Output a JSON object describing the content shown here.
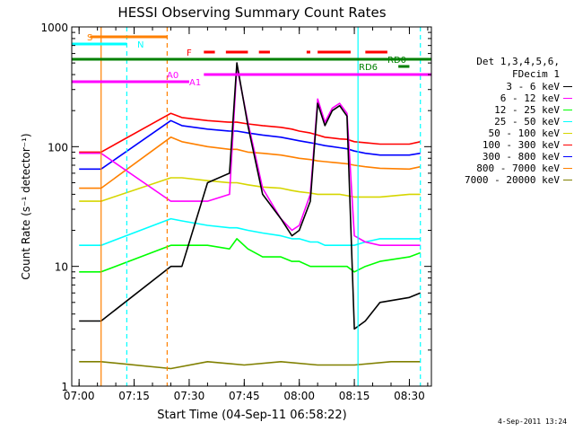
{
  "chart_data": {
    "type": "line",
    "title": "HESSI Observing Summary Count Rates",
    "xlabel": "Start Time (04-Sep-11 06:58:22)",
    "ylabel": "Count Rate (s⁻¹ detector⁻¹)",
    "ylog": true,
    "xlim": [
      "06:58",
      "08:36"
    ],
    "ylim": [
      1,
      1000
    ],
    "x_ticks": [
      "07:00",
      "07:15",
      "07:30",
      "07:45",
      "08:00",
      "08:15",
      "08:30"
    ],
    "y_ticks": [
      "1",
      "10",
      "100",
      "1000"
    ],
    "legend_placement": "right",
    "legend_header": [
      "Det 1,3,4,5,6,",
      "FDecim 1"
    ],
    "series": [
      {
        "name": "3 - 6 keV",
        "color": "#000000",
        "points": [
          [
            "07:00",
            3.5
          ],
          [
            "07:06",
            3.5
          ],
          [
            "07:25",
            10
          ],
          [
            "07:28",
            10
          ],
          [
            "07:35",
            50
          ],
          [
            "07:41",
            60
          ],
          [
            "07:43",
            500
          ],
          [
            "07:46",
            150
          ],
          [
            "07:50",
            40
          ],
          [
            "07:55",
            25
          ],
          [
            "07:58",
            18
          ],
          [
            "08:00",
            20
          ],
          [
            "08:03",
            35
          ],
          [
            "08:05",
            230
          ],
          [
            "08:07",
            150
          ],
          [
            "08:09",
            200
          ],
          [
            "08:11",
            220
          ],
          [
            "08:13",
            180
          ],
          [
            "08:15",
            3
          ],
          [
            "08:18",
            3.5
          ],
          [
            "08:22",
            5
          ],
          [
            "08:30",
            5.5
          ],
          [
            "08:33",
            6
          ]
        ]
      },
      {
        "name": "6 - 12 keV",
        "color": "#ff00ff",
        "points": [
          [
            "07:00",
            88
          ],
          [
            "07:06",
            88
          ],
          [
            "07:25",
            35
          ],
          [
            "07:28",
            35
          ],
          [
            "07:35",
            35
          ],
          [
            "07:41",
            40
          ],
          [
            "07:43",
            470
          ],
          [
            "07:46",
            160
          ],
          [
            "07:50",
            45
          ],
          [
            "07:55",
            25
          ],
          [
            "07:58",
            20
          ],
          [
            "08:00",
            22
          ],
          [
            "08:03",
            40
          ],
          [
            "08:05",
            250
          ],
          [
            "08:07",
            160
          ],
          [
            "08:09",
            210
          ],
          [
            "08:11",
            230
          ],
          [
            "08:13",
            190
          ],
          [
            "08:15",
            18
          ],
          [
            "08:18",
            16
          ],
          [
            "08:22",
            15
          ],
          [
            "08:30",
            15
          ],
          [
            "08:33",
            15
          ]
        ]
      },
      {
        "name": "12 - 25 keV",
        "color": "#00ff00",
        "points": [
          [
            "07:00",
            9
          ],
          [
            "07:06",
            9
          ],
          [
            "07:25",
            15
          ],
          [
            "07:28",
            15
          ],
          [
            "07:35",
            15
          ],
          [
            "07:41",
            14
          ],
          [
            "07:43",
            17
          ],
          [
            "07:46",
            14
          ],
          [
            "07:50",
            12
          ],
          [
            "07:55",
            12
          ],
          [
            "07:58",
            11
          ],
          [
            "08:00",
            11
          ],
          [
            "08:03",
            10
          ],
          [
            "08:05",
            10
          ],
          [
            "08:07",
            10
          ],
          [
            "08:09",
            10
          ],
          [
            "08:11",
            10
          ],
          [
            "08:13",
            10
          ],
          [
            "08:15",
            9
          ],
          [
            "08:18",
            10
          ],
          [
            "08:22",
            11
          ],
          [
            "08:30",
            12
          ],
          [
            "08:33",
            13
          ]
        ]
      },
      {
        "name": "25 - 50 keV",
        "color": "#00ffff",
        "points": [
          [
            "07:00",
            15
          ],
          [
            "07:06",
            15
          ],
          [
            "07:25",
            25
          ],
          [
            "07:28",
            24
          ],
          [
            "07:35",
            22
          ],
          [
            "07:41",
            21
          ],
          [
            "07:43",
            21
          ],
          [
            "07:46",
            20
          ],
          [
            "07:50",
            19
          ],
          [
            "07:55",
            18
          ],
          [
            "07:58",
            17
          ],
          [
            "08:00",
            17
          ],
          [
            "08:03",
            16
          ],
          [
            "08:05",
            16
          ],
          [
            "08:07",
            15
          ],
          [
            "08:09",
            15
          ],
          [
            "08:11",
            15
          ],
          [
            "08:13",
            15
          ],
          [
            "08:15",
            15
          ],
          [
            "08:18",
            16
          ],
          [
            "08:22",
            17
          ],
          [
            "08:30",
            17
          ],
          [
            "08:33",
            17
          ]
        ]
      },
      {
        "name": "50 - 100 keV",
        "color": "#d6d600",
        "points": [
          [
            "07:00",
            35
          ],
          [
            "07:06",
            35
          ],
          [
            "07:25",
            55
          ],
          [
            "07:28",
            55
          ],
          [
            "07:35",
            52
          ],
          [
            "07:41",
            50
          ],
          [
            "07:43",
            50
          ],
          [
            "07:46",
            48
          ],
          [
            "07:50",
            46
          ],
          [
            "07:55",
            45
          ],
          [
            "07:58",
            43
          ],
          [
            "08:00",
            42
          ],
          [
            "08:03",
            41
          ],
          [
            "08:05",
            40
          ],
          [
            "08:07",
            40
          ],
          [
            "08:09",
            40
          ],
          [
            "08:11",
            40
          ],
          [
            "08:13",
            39
          ],
          [
            "08:15",
            38
          ],
          [
            "08:18",
            38
          ],
          [
            "08:22",
            38
          ],
          [
            "08:30",
            40
          ],
          [
            "08:33",
            40
          ]
        ]
      },
      {
        "name": "100 - 300 keV",
        "color": "#ff0000",
        "points": [
          [
            "07:00",
            90
          ],
          [
            "07:06",
            90
          ],
          [
            "07:25",
            190
          ],
          [
            "07:28",
            175
          ],
          [
            "07:35",
            165
          ],
          [
            "07:41",
            160
          ],
          [
            "07:43",
            160
          ],
          [
            "07:46",
            155
          ],
          [
            "07:50",
            150
          ],
          [
            "07:55",
            145
          ],
          [
            "07:58",
            140
          ],
          [
            "08:00",
            135
          ],
          [
            "08:03",
            130
          ],
          [
            "08:05",
            125
          ],
          [
            "08:07",
            120
          ],
          [
            "08:09",
            118
          ],
          [
            "08:11",
            116
          ],
          [
            "08:13",
            115
          ],
          [
            "08:15",
            110
          ],
          [
            "08:18",
            108
          ],
          [
            "08:22",
            105
          ],
          [
            "08:30",
            105
          ],
          [
            "08:33",
            110
          ]
        ]
      },
      {
        "name": "300 - 800 keV",
        "color": "#0000ff",
        "points": [
          [
            "07:00",
            65
          ],
          [
            "07:06",
            65
          ],
          [
            "07:25",
            165
          ],
          [
            "07:28",
            150
          ],
          [
            "07:35",
            140
          ],
          [
            "07:41",
            135
          ],
          [
            "07:43",
            135
          ],
          [
            "07:46",
            130
          ],
          [
            "07:50",
            125
          ],
          [
            "07:55",
            120
          ],
          [
            "07:58",
            115
          ],
          [
            "08:00",
            112
          ],
          [
            "08:03",
            108
          ],
          [
            "08:05",
            105
          ],
          [
            "08:07",
            102
          ],
          [
            "08:09",
            100
          ],
          [
            "08:11",
            98
          ],
          [
            "08:13",
            96
          ],
          [
            "08:15",
            92
          ],
          [
            "08:18",
            88
          ],
          [
            "08:22",
            85
          ],
          [
            "08:30",
            85
          ],
          [
            "08:33",
            88
          ]
        ]
      },
      {
        "name": "800 - 7000 keV",
        "color": "#ff8000",
        "points": [
          [
            "07:00",
            45
          ],
          [
            "07:06",
            45
          ],
          [
            "07:25",
            120
          ],
          [
            "07:28",
            110
          ],
          [
            "07:35",
            100
          ],
          [
            "07:41",
            95
          ],
          [
            "07:43",
            95
          ],
          [
            "07:46",
            90
          ],
          [
            "07:50",
            88
          ],
          [
            "07:55",
            85
          ],
          [
            "07:58",
            82
          ],
          [
            "08:00",
            80
          ],
          [
            "08:03",
            78
          ],
          [
            "08:05",
            76
          ],
          [
            "08:07",
            75
          ],
          [
            "08:09",
            74
          ],
          [
            "08:11",
            73
          ],
          [
            "08:13",
            72
          ],
          [
            "08:15",
            70
          ],
          [
            "08:18",
            68
          ],
          [
            "08:22",
            66
          ],
          [
            "08:30",
            65
          ],
          [
            "08:33",
            68
          ]
        ]
      },
      {
        "name": "7000 - 20000 keV",
        "color": "#808000",
        "points": [
          [
            "07:00",
            1.6
          ],
          [
            "07:06",
            1.6
          ],
          [
            "07:25",
            1.4
          ],
          [
            "07:35",
            1.6
          ],
          [
            "07:45",
            1.5
          ],
          [
            "07:55",
            1.6
          ],
          [
            "08:05",
            1.5
          ],
          [
            "08:15",
            1.5
          ],
          [
            "08:25",
            1.6
          ],
          [
            "08:33",
            1.6
          ]
        ]
      }
    ],
    "state_bars": [
      {
        "label": "S",
        "color": "#ff8000",
        "start": "07:03",
        "end": "07:24"
      },
      {
        "label": "N",
        "color": "#00ffff",
        "start": "06:58",
        "end": "07:13"
      },
      {
        "label": "F",
        "color": "#ff0000",
        "segments": [
          [
            "07:34",
            "07:37"
          ],
          [
            "07:40",
            "07:46"
          ],
          [
            "07:49",
            "07:52"
          ],
          [
            "08:02",
            "08:03"
          ],
          [
            "08:05",
            "08:14"
          ],
          [
            "08:18",
            "08:24"
          ]
        ]
      },
      {
        "label": "RD0",
        "color": "#008000",
        "start": "06:58",
        "end": "08:36"
      },
      {
        "label": "RD6",
        "color": "#008000",
        "start": "08:27",
        "end": "08:30"
      },
      {
        "label": "A0",
        "color": "#ff00ff",
        "start": "07:34",
        "end": "08:36"
      },
      {
        "label": "A1",
        "color": "#ff00ff",
        "start": "06:58",
        "end": "07:30"
      }
    ],
    "vertical_markers": [
      {
        "time": "07:06",
        "color": "#ff8000",
        "style": "solid"
      },
      {
        "time": "07:13",
        "color": "#00ffff",
        "style": "dashed"
      },
      {
        "time": "07:24",
        "color": "#ff8000",
        "style": "dashed"
      },
      {
        "time": "08:16",
        "color": "#00ffff",
        "style": "solid"
      },
      {
        "time": "08:33",
        "color": "#00ffff",
        "style": "dashed"
      }
    ]
  },
  "footer": {
    "timestamp": "4-Sep-2011 13:24"
  }
}
